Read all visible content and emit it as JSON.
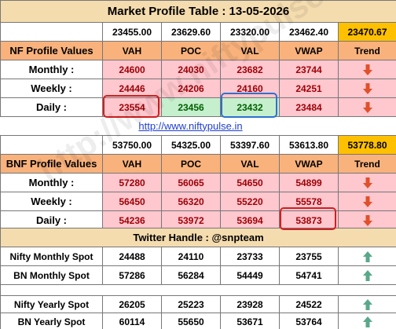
{
  "title": "Market Profile Table : 13-05-2026",
  "nf": {
    "levels": [
      "23455.00",
      "23629.60",
      "23320.00",
      "23462.40",
      "23470.67"
    ],
    "header": [
      "NF Profile Values",
      "VAH",
      "POC",
      "VAL",
      "VWAP",
      "Trend"
    ],
    "rows": [
      [
        "Monthly :",
        "24600",
        "24030",
        "23682",
        "23744"
      ],
      [
        "Weekly :",
        "24446",
        "24206",
        "24160",
        "24251"
      ],
      [
        "Daily :",
        "23554",
        "23456",
        "23432",
        "23484"
      ]
    ]
  },
  "link": "http://www.niftypulse.in",
  "bnf": {
    "levels": [
      "53750.00",
      "54325.00",
      "53397.60",
      "53613.80",
      "53778.80"
    ],
    "header": [
      "BNF Profile Values",
      "VAH",
      "POC",
      "VAL",
      "VWAP",
      "Trend"
    ],
    "rows": [
      [
        "Monthly :",
        "57280",
        "56065",
        "54650",
        "54899"
      ],
      [
        "Weekly :",
        "56450",
        "56320",
        "55220",
        "55578"
      ],
      [
        "Daily :",
        "54236",
        "53972",
        "53694",
        "53873"
      ]
    ]
  },
  "twitter": "Twitter Handle : @snpteam",
  "monthly_spot": [
    [
      "Nifty Monthly Spot",
      "24488",
      "24110",
      "23733",
      "23755"
    ],
    [
      "BN Monthly Spot",
      "57286",
      "56284",
      "54449",
      "54741"
    ]
  ],
  "yearly_spot": [
    [
      "Nifty Yearly Spot",
      "26205",
      "25223",
      "23928",
      "24522"
    ],
    [
      "BN Yearly Spot",
      "60114",
      "55650",
      "53671",
      "53764"
    ]
  ],
  "watermark": "http://www.niftypulse.in"
}
